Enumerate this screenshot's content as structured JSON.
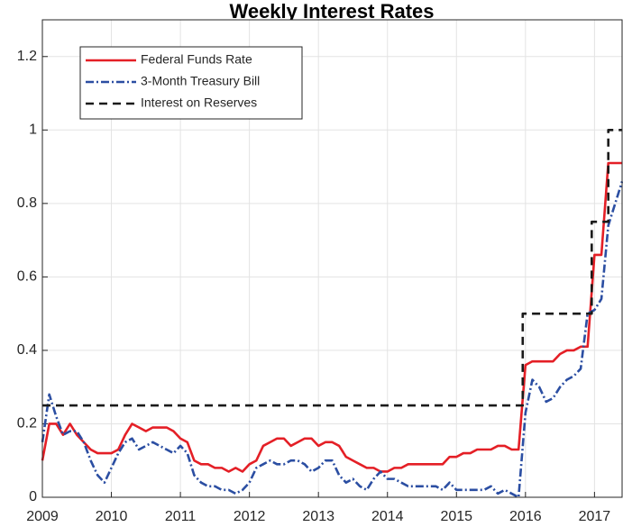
{
  "chart_data": {
    "type": "line",
    "title": "Weekly Interest Rates",
    "xlim": [
      2009,
      2017.4
    ],
    "xticks": [
      2009,
      2010,
      2011,
      2012,
      2013,
      2014,
      2015,
      2016,
      2017
    ],
    "ylim": [
      0,
      1.3
    ],
    "yticks": [
      0,
      0.2,
      0.4,
      0.6,
      0.8,
      1,
      1.2
    ],
    "grid": true,
    "legend": "upper left",
    "series": [
      {
        "name": "Federal Funds Rate",
        "color": "#e41f26",
        "style": "solid",
        "x": [
          2009.0,
          2009.1,
          2009.2,
          2009.3,
          2009.4,
          2009.5,
          2009.6,
          2009.7,
          2009.8,
          2009.9,
          2010.0,
          2010.1,
          2010.2,
          2010.3,
          2010.4,
          2010.5,
          2010.6,
          2010.7,
          2010.8,
          2010.9,
          2011.0,
          2011.1,
          2011.2,
          2011.3,
          2011.4,
          2011.5,
          2011.6,
          2011.7,
          2011.8,
          2011.9,
          2012.0,
          2012.1,
          2012.2,
          2012.3,
          2012.4,
          2012.5,
          2012.6,
          2012.7,
          2012.8,
          2012.9,
          2013.0,
          2013.1,
          2013.2,
          2013.3,
          2013.4,
          2013.5,
          2013.6,
          2013.7,
          2013.8,
          2013.9,
          2014.0,
          2014.1,
          2014.2,
          2014.3,
          2014.4,
          2014.5,
          2014.6,
          2014.7,
          2014.8,
          2014.9,
          2015.0,
          2015.1,
          2015.2,
          2015.3,
          2015.4,
          2015.5,
          2015.6,
          2015.7,
          2015.8,
          2015.9,
          2016.0,
          2016.1,
          2016.2,
          2016.3,
          2016.4,
          2016.5,
          2016.6,
          2016.7,
          2016.8,
          2016.9,
          2017.0,
          2017.1,
          2017.2,
          2017.3,
          2017.4
        ],
        "values": [
          0.1,
          0.2,
          0.2,
          0.17,
          0.2,
          0.17,
          0.15,
          0.13,
          0.12,
          0.12,
          0.12,
          0.13,
          0.17,
          0.2,
          0.19,
          0.18,
          0.19,
          0.19,
          0.19,
          0.18,
          0.16,
          0.15,
          0.1,
          0.09,
          0.09,
          0.08,
          0.08,
          0.07,
          0.08,
          0.07,
          0.09,
          0.1,
          0.14,
          0.15,
          0.16,
          0.16,
          0.14,
          0.15,
          0.16,
          0.16,
          0.14,
          0.15,
          0.15,
          0.14,
          0.11,
          0.1,
          0.09,
          0.08,
          0.08,
          0.07,
          0.07,
          0.08,
          0.08,
          0.09,
          0.09,
          0.09,
          0.09,
          0.09,
          0.09,
          0.11,
          0.11,
          0.12,
          0.12,
          0.13,
          0.13,
          0.13,
          0.14,
          0.14,
          0.13,
          0.13,
          0.36,
          0.37,
          0.37,
          0.37,
          0.37,
          0.39,
          0.4,
          0.4,
          0.41,
          0.41,
          0.66,
          0.66,
          0.91,
          0.91,
          0.91
        ]
      },
      {
        "name": "3-Month Treasury Bill",
        "color": "#2b4ea2",
        "style": "dashdot",
        "x": [
          2009.0,
          2009.1,
          2009.2,
          2009.3,
          2009.4,
          2009.5,
          2009.6,
          2009.7,
          2009.8,
          2009.9,
          2010.0,
          2010.1,
          2010.2,
          2010.3,
          2010.4,
          2010.5,
          2010.6,
          2010.7,
          2010.8,
          2010.9,
          2011.0,
          2011.1,
          2011.2,
          2011.3,
          2011.4,
          2011.5,
          2011.6,
          2011.7,
          2011.8,
          2011.9,
          2012.0,
          2012.1,
          2012.2,
          2012.3,
          2012.4,
          2012.5,
          2012.6,
          2012.7,
          2012.8,
          2012.9,
          2013.0,
          2013.1,
          2013.2,
          2013.3,
          2013.4,
          2013.5,
          2013.6,
          2013.7,
          2013.8,
          2013.9,
          2014.0,
          2014.1,
          2014.2,
          2014.3,
          2014.4,
          2014.5,
          2014.6,
          2014.7,
          2014.8,
          2014.9,
          2015.0,
          2015.1,
          2015.2,
          2015.3,
          2015.4,
          2015.5,
          2015.6,
          2015.7,
          2015.8,
          2015.9,
          2016.0,
          2016.1,
          2016.2,
          2016.3,
          2016.4,
          2016.5,
          2016.6,
          2016.7,
          2016.8,
          2016.9,
          2017.0,
          2017.1,
          2017.2,
          2017.3,
          2017.4
        ],
        "values": [
          0.15,
          0.28,
          0.22,
          0.17,
          0.18,
          0.18,
          0.15,
          0.1,
          0.06,
          0.04,
          0.08,
          0.12,
          0.15,
          0.16,
          0.13,
          0.14,
          0.15,
          0.14,
          0.13,
          0.12,
          0.14,
          0.12,
          0.06,
          0.04,
          0.03,
          0.03,
          0.02,
          0.02,
          0.01,
          0.02,
          0.04,
          0.08,
          0.09,
          0.1,
          0.09,
          0.09,
          0.1,
          0.1,
          0.09,
          0.07,
          0.08,
          0.1,
          0.1,
          0.06,
          0.04,
          0.05,
          0.03,
          0.02,
          0.05,
          0.07,
          0.05,
          0.05,
          0.04,
          0.03,
          0.03,
          0.03,
          0.03,
          0.03,
          0.02,
          0.04,
          0.02,
          0.02,
          0.02,
          0.02,
          0.02,
          0.03,
          0.01,
          0.02,
          0.01,
          0,
          0.23,
          0.32,
          0.3,
          0.26,
          0.27,
          0.3,
          0.32,
          0.33,
          0.35,
          0.5,
          0.51,
          0.54,
          0.74,
          0.8,
          0.86
        ]
      },
      {
        "name": "Interest on Reserves",
        "color": "#1a1a1a",
        "style": "dashed",
        "x": [
          2009.0,
          2015.96,
          2015.96,
          2016.96,
          2016.96,
          2017.2,
          2017.2,
          2017.4
        ],
        "values": [
          0.25,
          0.25,
          0.5,
          0.5,
          0.75,
          0.75,
          1,
          1
        ]
      }
    ]
  }
}
